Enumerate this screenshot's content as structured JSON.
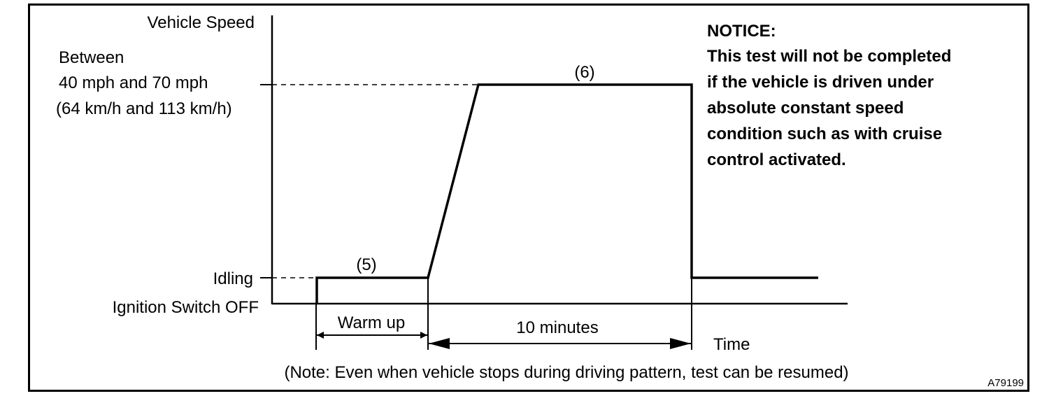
{
  "y_axis": {
    "title": "Vehicle Speed",
    "speed_label": [
      "Between",
      "40 mph and 70 mph",
      "(64 km/h and 113 km/h)"
    ],
    "idling_label": "Idling",
    "ignition_label": "Ignition Switch OFF"
  },
  "x_axis": {
    "title": "Time"
  },
  "steps": {
    "step5": "(5)",
    "step6": "(6)"
  },
  "intervals": {
    "warm_up": "Warm up",
    "ten_minutes": "10 minutes"
  },
  "notice": {
    "heading": "NOTICE:",
    "lines": [
      "This test will not be completed",
      "if the vehicle is driven under",
      "absolute constant speed",
      "condition such as with cruise",
      "control activated."
    ]
  },
  "note": "(Note: Even when vehicle stops during driving pattern, test can be resumed)",
  "figure_code": "A79199"
}
